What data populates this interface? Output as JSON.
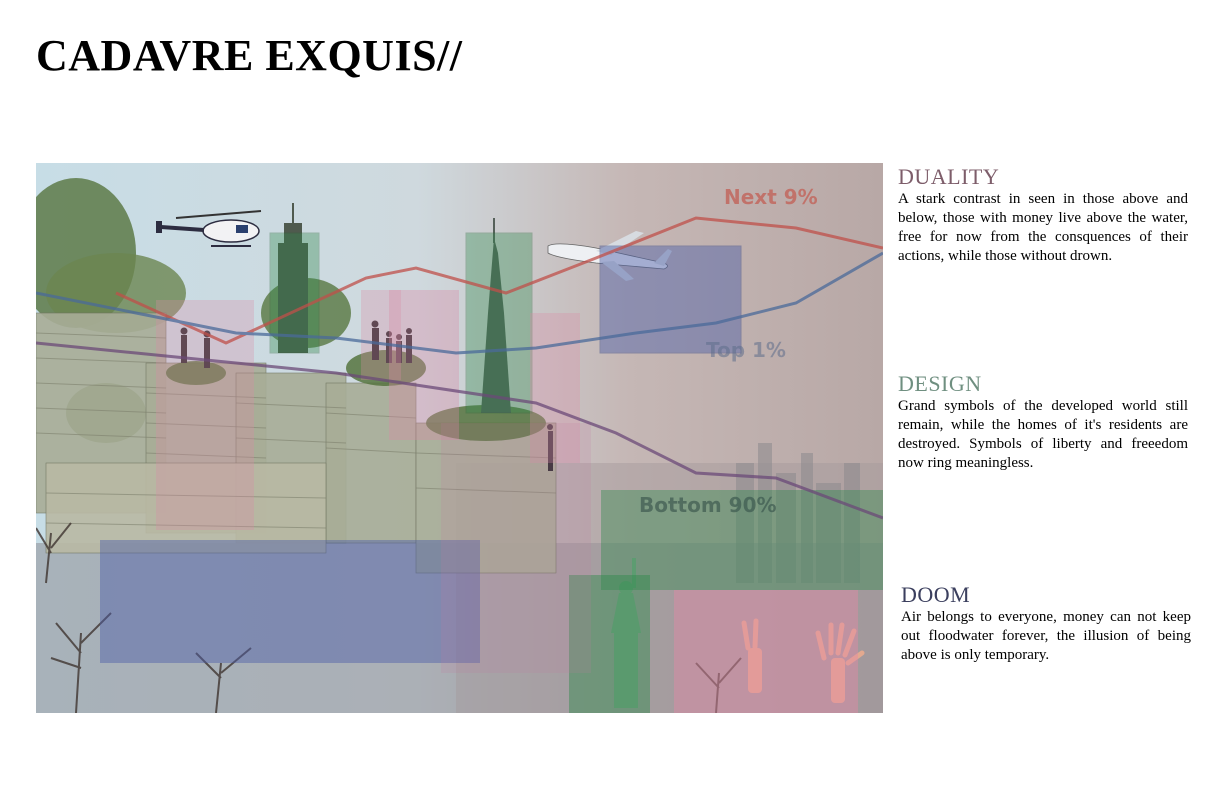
{
  "page": {
    "title": "CADAVRE EXQUIS//"
  },
  "collage": {
    "labels": {
      "next": "Next 9%",
      "top": "Top 1%",
      "bottom": "Bottom 90%"
    },
    "colors": {
      "green": "#2e8a4c",
      "pink": "#d98aa6",
      "blue": "#4b5ea8",
      "red_line": "#c0504a",
      "blue_line": "#4a6a9a",
      "purple_line": "#6b4a78"
    }
  },
  "sections": [
    {
      "heading": "DUALITY",
      "color": "#7d5d6a",
      "body": "A stark contrast in seen in those above and below, those with money live above the water, free for now from the consquences of their actions, while those without drown."
    },
    {
      "heading": "DESIGN",
      "color": "#6f8f80",
      "body": "Grand symbols of the developed world still remain, while the homes of it's residents are destroyed. Symbols of liberty and freeedom now ring meaningless."
    },
    {
      "heading": "DOOM",
      "color": "#3b3f5e",
      "body": "Air belongs to everyone, money can not keep out floodwater forever, the illusion of being above is only temporary."
    }
  ]
}
